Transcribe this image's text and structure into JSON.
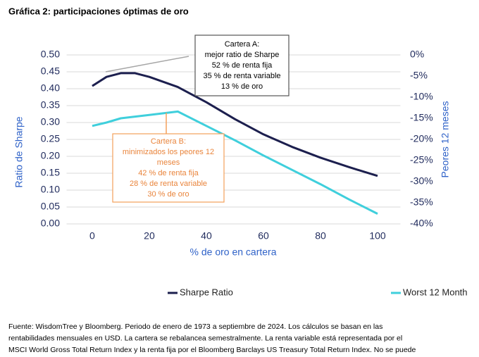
{
  "chart_data": {
    "type": "line",
    "title": "Gráfica 2: participaciones óptimas de oro",
    "xlabel": "% de oro en cartera",
    "ylabel": "Ratio de Sharpe",
    "y2label": "Peores 12 meses",
    "x": [
      0,
      5,
      10,
      15,
      20,
      30,
      40,
      50,
      60,
      70,
      80,
      90,
      100
    ],
    "series": [
      {
        "name": "Sharpe Ratio",
        "color": "#1c1f4e",
        "values": [
          0.408,
          0.435,
          0.446,
          0.446,
          0.435,
          0.405,
          0.36,
          0.31,
          0.265,
          0.228,
          0.196,
          0.168,
          0.142
        ]
      },
      {
        "name": "Worst 12 Month",
        "color": "#3fcfdc",
        "axis": "y2",
        "values": [
          -16.8,
          -16.0,
          -15.0,
          -14.6,
          -14.2,
          -13.4,
          -16.8,
          -20.2,
          -23.8,
          -27.2,
          -30.6,
          -34.2,
          -37.6
        ]
      }
    ],
    "xlim": [
      -9,
      108
    ],
    "xticks": [
      0,
      20,
      40,
      60,
      80,
      100
    ],
    "ylim": [
      0,
      0.5
    ],
    "yticks": [
      {
        "value": 0,
        "label": "0.00"
      },
      {
        "value": 0.05,
        "label": "0.05"
      },
      {
        "value": 0.1,
        "label": "0.10"
      },
      {
        "value": 0.15,
        "label": "0.15"
      },
      {
        "value": 0.2,
        "label": "0.20"
      },
      {
        "value": 0.25,
        "label": "0.25"
      },
      {
        "value": 0.3,
        "label": "0.30"
      },
      {
        "value": 0.35,
        "label": "0.35"
      },
      {
        "value": 0.4,
        "label": "0.40"
      },
      {
        "value": 0.45,
        "label": "0.45"
      },
      {
        "value": 0.5,
        "label": "0.50"
      }
    ],
    "y2lim": [
      -40,
      0
    ],
    "y2ticks": [
      {
        "value": 0,
        "label": "0%"
      },
      {
        "value": -5,
        "label": "-5%"
      },
      {
        "value": -10,
        "label": "-10%"
      },
      {
        "value": -15,
        "label": "-15%"
      },
      {
        "value": -20,
        "label": "-20%"
      },
      {
        "value": -25,
        "label": "-25%"
      },
      {
        "value": -30,
        "label": "-30%"
      },
      {
        "value": -35,
        "label": "-35%"
      },
      {
        "value": -40,
        "label": "-40%"
      }
    ],
    "grid": true,
    "legend": "bottom",
    "annotations": [
      {
        "lines": [
          "Cartera A:",
          "mejor ratio de Sharpe",
          "52 % de renta fija",
          "35 % de renta variable",
          "13 %  de oro"
        ]
      },
      {
        "lines": [
          "Cartera B:",
          "minimizados los peores 12",
          "meses",
          "42 % de renta fija",
          "28 % de renta variable",
          "30 % de oro"
        ]
      }
    ],
    "source": [
      "Fuente: WisdomTree y Bloomberg. Periodo de enero de 1973 a septiembre de 2024. Los cálculos se basan en las",
      "rentabilidades mensuales en USD. La cartera se rebalancea semestralmente. La renta variable está representada por el",
      "MSCI World Gross Total Return Index y la renta fija por el Bloomberg Barclays US Treasury Total Return Index. No se puede"
    ]
  }
}
